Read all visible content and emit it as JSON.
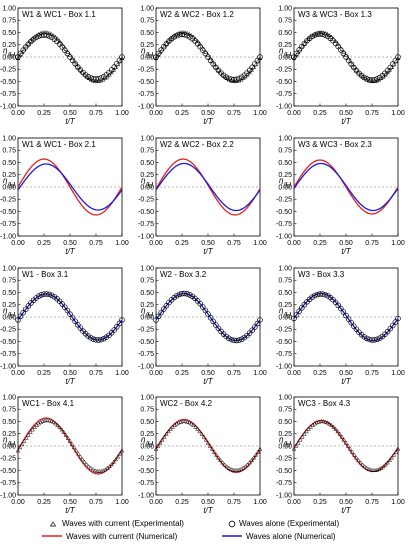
{
  "chart_data": {
    "type": "line",
    "grid": false,
    "legend_position": "bottom",
    "x_ticks": [
      "0.00",
      "0.25",
      "0.50",
      "0.75",
      "1.00"
    ],
    "y_ticks": [
      "1.00",
      "0.75",
      "0.50",
      "0.25",
      "0.00",
      "-0.25",
      "-0.50",
      "-0.75",
      "-1.00"
    ],
    "xlim": [
      0,
      1
    ],
    "ylim": [
      -1,
      1
    ],
    "xlabel": "t/T",
    "ylabel_num": "η",
    "ylabel_den": "H",
    "legend": {
      "exp_current": "Waves with current (Experimental)",
      "exp_alone": "Waves alone (Experimental)",
      "num_current": "Waves with current (Numerical)",
      "num_alone": "Waves alone (Numerical)"
    },
    "colors": {
      "num_current": "#e02020",
      "num_alone": "#1c1cd6",
      "markers": "#000000",
      "zero_line": "#777777"
    },
    "panels": [
      {
        "title": "W1 & WC1 - Box 1.1",
        "markers": [
          "triangle",
          "circle"
        ],
        "lines": [],
        "amp_tri": 0.5,
        "phase_tri": 0.26,
        "amp_circ": 0.45,
        "phase_circ": 0.25
      },
      {
        "title": "W2 & WC2 - Box 1.2",
        "markers": [
          "triangle",
          "circle"
        ],
        "lines": [],
        "amp_tri": 0.5,
        "phase_tri": 0.26,
        "amp_circ": 0.46,
        "phase_circ": 0.25
      },
      {
        "title": "W3 & WC3 - Box 1.3",
        "markers": [
          "triangle",
          "circle"
        ],
        "lines": [],
        "amp_tri": 0.5,
        "phase_tri": 0.26,
        "amp_circ": 0.47,
        "phase_circ": 0.25
      },
      {
        "title": "W1 & WC1 - Box 2.1",
        "markers": [],
        "lines": [
          "current",
          "alone"
        ],
        "amp_red": 0.57,
        "phase_red": 0.25,
        "amp_blue": 0.47,
        "phase_blue": 0.27
      },
      {
        "title": "W2 & WC2 - Box 2.2",
        "markers": [],
        "lines": [
          "current",
          "alone"
        ],
        "amp_red": 0.57,
        "phase_red": 0.26,
        "amp_blue": 0.48,
        "phase_blue": 0.27
      },
      {
        "title": "W3 & WC3 - Box 2.3",
        "markers": [],
        "lines": [
          "current",
          "alone"
        ],
        "amp_red": 0.55,
        "phase_red": 0.25,
        "amp_blue": 0.48,
        "phase_blue": 0.26
      },
      {
        "title": "W1 - Box 3.1",
        "markers": [
          "circle"
        ],
        "lines": [
          "alone"
        ],
        "amp_blue": 0.47,
        "phase_blue": 0.27,
        "amp_circ": 0.47,
        "phase_circ": 0.27
      },
      {
        "title": "W2 - Box 3.2",
        "markers": [
          "circle"
        ],
        "lines": [
          "alone"
        ],
        "amp_blue": 0.48,
        "phase_blue": 0.27,
        "amp_circ": 0.48,
        "phase_circ": 0.27
      },
      {
        "title": "W3 - Box 3.3",
        "markers": [
          "circle"
        ],
        "lines": [
          "alone"
        ],
        "amp_blue": 0.48,
        "phase_blue": 0.26,
        "amp_circ": 0.47,
        "phase_circ": 0.26
      },
      {
        "title": "WC1 - Box 4.1",
        "markers": [
          "triangle"
        ],
        "lines": [
          "current"
        ],
        "amp_red": 0.57,
        "phase_red": 0.27,
        "amp_tri": 0.52,
        "phase_tri": 0.28
      },
      {
        "title": "WC2 - Box 4.2",
        "markers": [
          "triangle"
        ],
        "lines": [
          "current"
        ],
        "amp_red": 0.54,
        "phase_red": 0.27,
        "amp_tri": 0.5,
        "phase_tri": 0.27
      },
      {
        "title": "WC3 - Box 4.3",
        "markers": [
          "triangle"
        ],
        "lines": [
          "current"
        ],
        "amp_red": 0.52,
        "phase_red": 0.26,
        "amp_tri": 0.5,
        "phase_tri": 0.27
      }
    ]
  }
}
